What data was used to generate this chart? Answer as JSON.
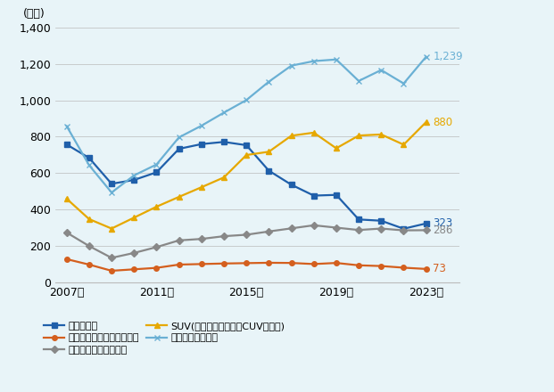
{
  "years": [
    2007,
    2008,
    2009,
    2010,
    2011,
    2012,
    2013,
    2014,
    2015,
    2016,
    2017,
    2018,
    2019,
    2020,
    2021,
    2022,
    2023
  ],
  "passenger_car": [
    757,
    683,
    541,
    562,
    604,
    733,
    759,
    771,
    753,
    613,
    536,
    476,
    480,
    345,
    338,
    294,
    323
  ],
  "minivan_fullsize_van": [
    127,
    97,
    63,
    71,
    79,
    97,
    100,
    103,
    105,
    107,
    106,
    100,
    106,
    93,
    89,
    80,
    73
  ],
  "pickup_truck": [
    273,
    199,
    134,
    161,
    193,
    230,
    238,
    253,
    261,
    279,
    296,
    313,
    300,
    287,
    295,
    285,
    286
  ],
  "suv": [
    459,
    347,
    295,
    355,
    415,
    469,
    522,
    576,
    699,
    717,
    805,
    822,
    736,
    806,
    812,
    756,
    880
  ],
  "light_truck_total": [
    858,
    643,
    493,
    587,
    647,
    796,
    860,
    932,
    1001,
    1102,
    1190,
    1215,
    1224,
    1106,
    1166,
    1092,
    1239
  ],
  "series_labels": [
    "乗用車小計",
    "ミニバン、フルサイズバン",
    "ピックアップトラック",
    "SUV(スポーツワゴン、CUVを含む)",
    "小型トラック小計"
  ],
  "series_colors": [
    "#1f5faa",
    "#d45f1e",
    "#888888",
    "#e6a800",
    "#6ab0d4"
  ],
  "markers": [
    "s",
    "o",
    "D",
    "^",
    "x"
  ],
  "ylabel": "(万台)",
  "ylim": [
    0,
    1400
  ],
  "yticks": [
    0,
    200,
    400,
    600,
    800,
    1000,
    1200,
    1400
  ],
  "xtick_labels": [
    "2007年",
    "2011年",
    "2015年",
    "2019年",
    "2023年"
  ],
  "xtick_positions": [
    2007,
    2011,
    2015,
    2019,
    2023
  ],
  "end_vals": [
    323,
    73,
    286,
    880,
    1239
  ],
  "background_color": "#e8f4f8",
  "grid_color": "#bbbbbb"
}
